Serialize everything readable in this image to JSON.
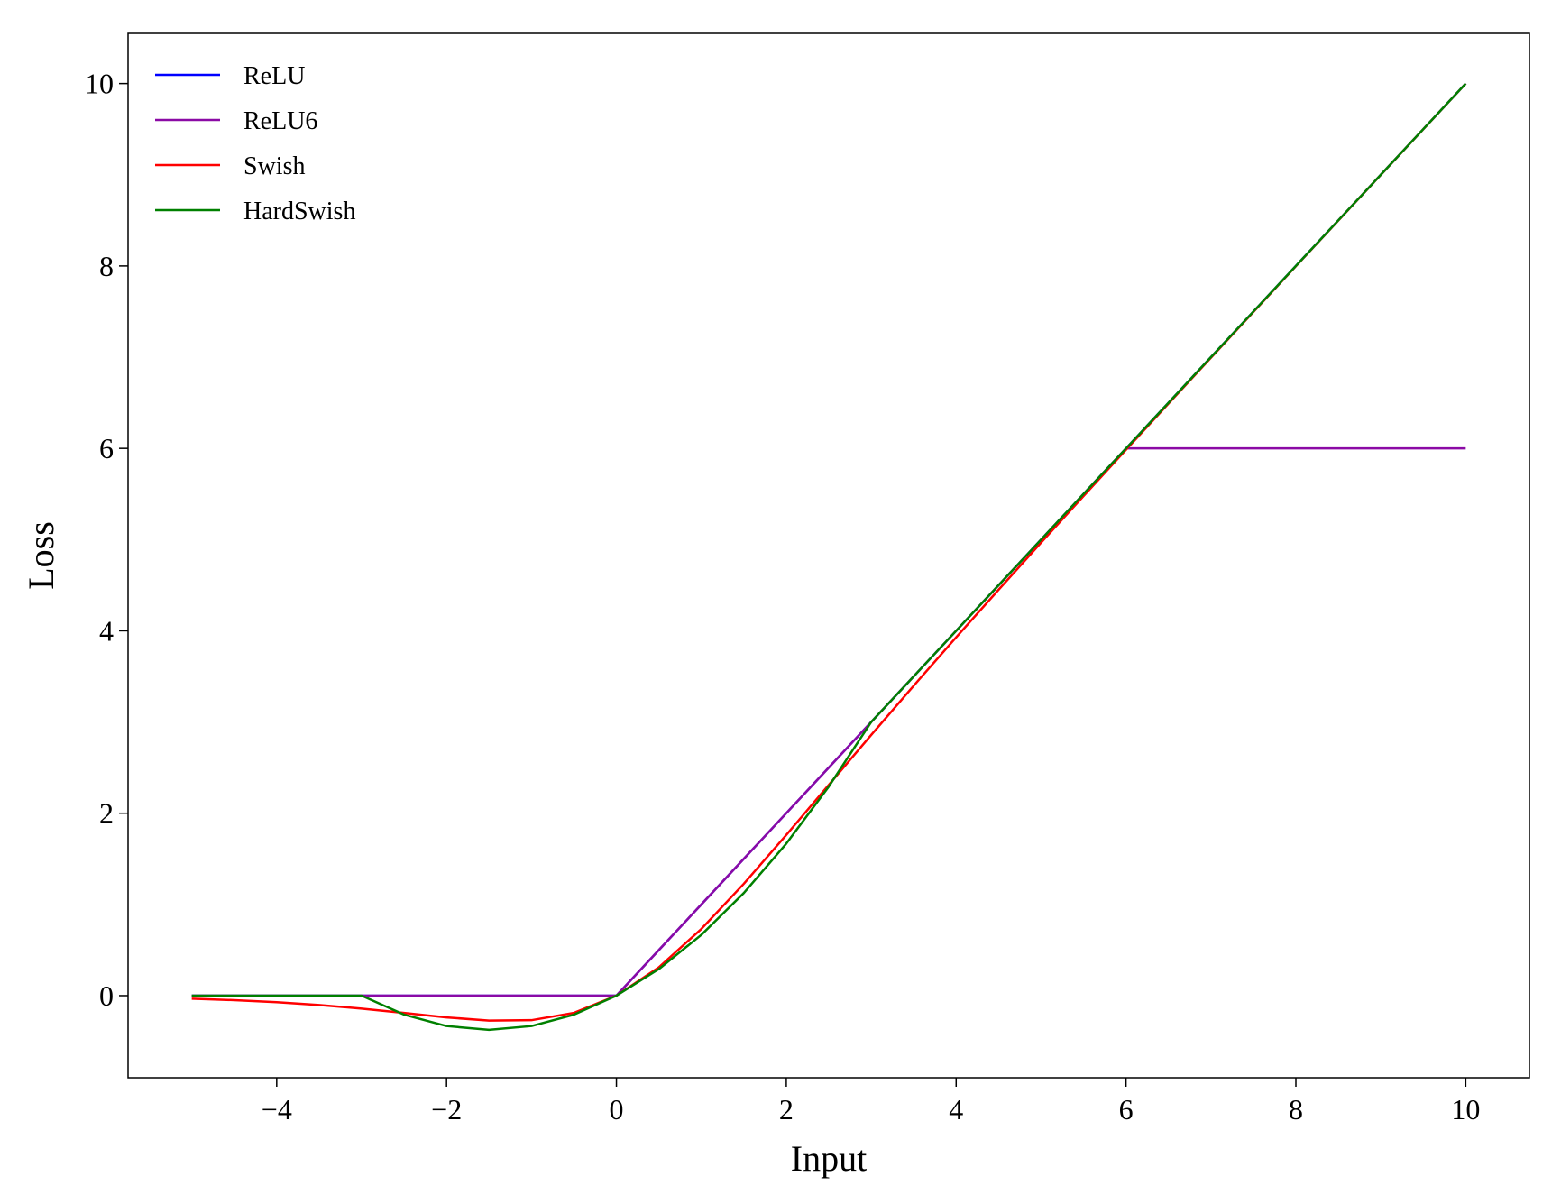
{
  "chart_data": {
    "type": "line",
    "xlabel": "Input",
    "ylabel": "Loss",
    "x": [
      -5,
      -4.5,
      -4,
      -3.5,
      -3,
      -2.5,
      -2,
      -1.5,
      -1,
      -0.5,
      0,
      0.5,
      1,
      1.5,
      2,
      2.5,
      3,
      3.5,
      4,
      4.5,
      5,
      5.5,
      6,
      6.5,
      7,
      7.5,
      8,
      8.5,
      9,
      9.5,
      10
    ],
    "series": [
      {
        "name": "ReLU",
        "color": "#0000ff",
        "values": [
          0,
          0,
          0,
          0,
          0,
          0,
          0,
          0,
          0,
          0,
          0,
          0.5,
          1,
          1.5,
          2,
          2.5,
          3,
          3.5,
          4,
          4.5,
          5,
          5.5,
          6,
          6.5,
          7,
          7.5,
          8,
          8.5,
          9,
          9.5,
          10
        ]
      },
      {
        "name": "ReLU6",
        "color": "#8b0aa5",
        "values": [
          0,
          0,
          0,
          0,
          0,
          0,
          0,
          0,
          0,
          0,
          0,
          0.5,
          1,
          1.5,
          2,
          2.5,
          3,
          3.5,
          4,
          4.5,
          5,
          5.5,
          6,
          6,
          6,
          6,
          6,
          6,
          6,
          6,
          6
        ]
      },
      {
        "name": "Swish",
        "color": "#ff0000",
        "values": [
          -0.0335,
          -0.0495,
          -0.0719,
          -0.1026,
          -0.1423,
          -0.1896,
          -0.2384,
          -0.2736,
          -0.2689,
          -0.1888,
          0,
          0.3112,
          0.7311,
          1.2264,
          1.7616,
          2.3104,
          2.8577,
          3.3974,
          3.9281,
          4.4505,
          4.9665,
          5.4777,
          5.9852,
          6.4902,
          6.9936,
          7.4958,
          7.9973,
          8.4983,
          8.9989,
          9.4993,
          9.9995
        ]
      },
      {
        "name": "HardSwish",
        "color": "#008000",
        "values": [
          0,
          0,
          0,
          0,
          0,
          -0.2083,
          -0.3333,
          -0.375,
          -0.3333,
          -0.2083,
          0,
          0.2917,
          0.6667,
          1.125,
          1.6667,
          2.2917,
          3,
          3.5,
          4,
          4.5,
          5,
          5.5,
          6,
          6.5,
          7,
          7.5,
          8,
          8.5,
          9,
          9.5,
          10
        ]
      }
    ],
    "xlim": [
      -5.75,
      10.75
    ],
    "xticks": [
      {
        "value": -4,
        "label": "−4"
      },
      {
        "value": -2,
        "label": "−2"
      },
      0,
      2,
      4,
      6,
      8,
      10
    ],
    "ylim": [
      -0.9,
      10.55
    ],
    "yticks": [
      0,
      2,
      4,
      6,
      8,
      10
    ],
    "grid": false,
    "legend": "upper left"
  }
}
